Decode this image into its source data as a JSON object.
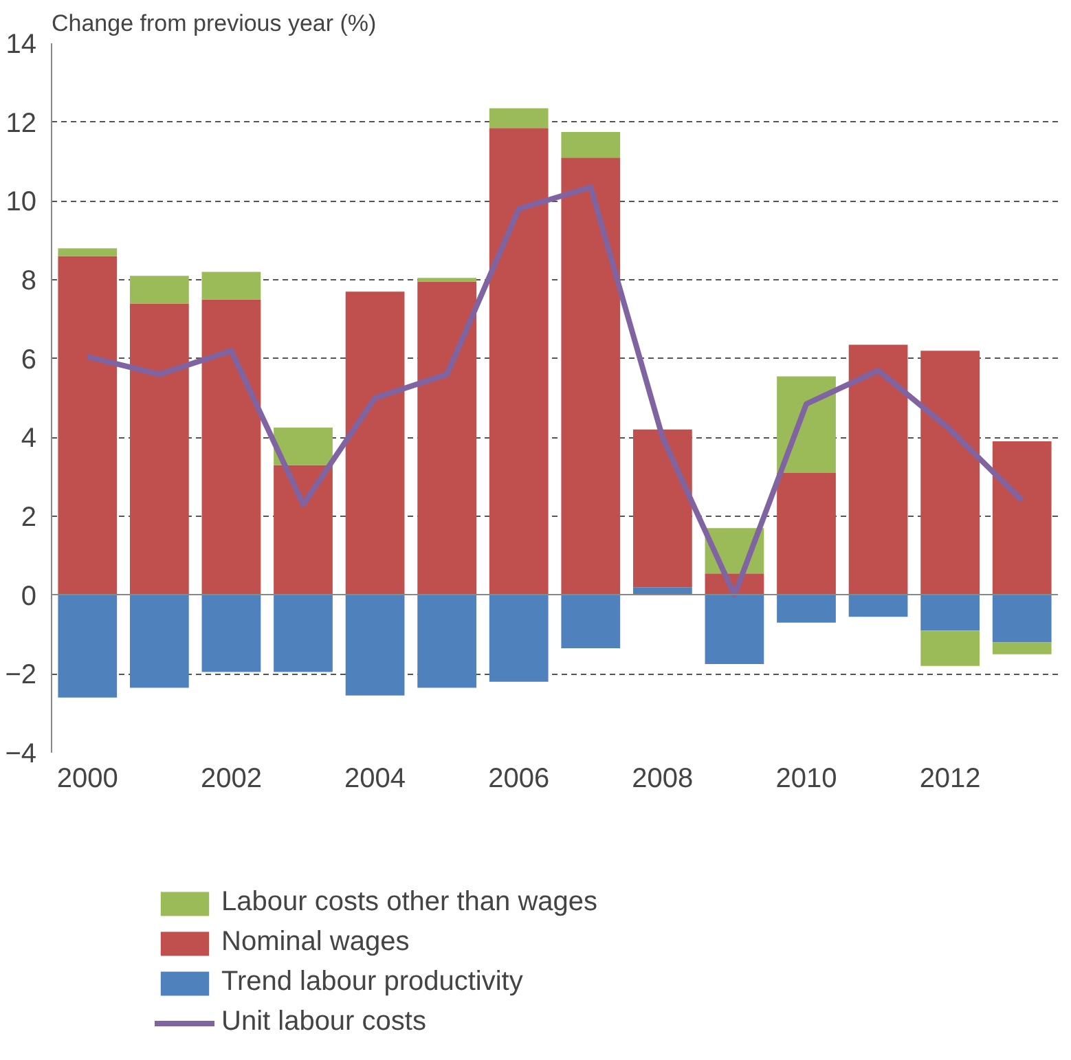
{
  "chart_data": {
    "type": "bar",
    "title": "Change from previous year (%)",
    "stacked": true,
    "x": [
      2000,
      2001,
      2002,
      2003,
      2004,
      2005,
      2006,
      2007,
      2008,
      2009,
      2010,
      2011,
      2012,
      2013
    ],
    "series": [
      {
        "name": "Trend labour productivity",
        "color": "#4f81bd",
        "values": [
          -2.6,
          -2.35,
          -1.95,
          -1.95,
          -2.55,
          -2.35,
          -2.2,
          -1.35,
          0.2,
          -1.75,
          -0.7,
          -0.55,
          -0.9,
          -1.2
        ]
      },
      {
        "name": "Nominal wages",
        "color": "#c0504d",
        "values": [
          8.6,
          7.4,
          7.5,
          3.3,
          7.7,
          7.95,
          11.85,
          11.1,
          4.0,
          0.55,
          3.1,
          6.35,
          6.2,
          3.9
        ]
      },
      {
        "name": "Labour costs other than wages",
        "color": "#9bbb59",
        "values": [
          0.2,
          0.7,
          0.7,
          0.95,
          0,
          0.1,
          0.5,
          0.65,
          0,
          1.15,
          2.45,
          0,
          -0.9,
          -0.3
        ]
      },
      {
        "name": "Unit labour costs",
        "color": "#8064a2",
        "type": "line",
        "values": [
          6.05,
          5.6,
          6.2,
          2.3,
          5.0,
          5.6,
          9.8,
          10.35,
          4.0,
          0.0,
          4.85,
          5.7,
          4.2,
          2.4
        ]
      }
    ],
    "xlim": [
      1999.5,
      2013.5
    ],
    "xticks": [
      2000,
      2002,
      2004,
      2006,
      2008,
      2010,
      2012
    ],
    "ylim": [
      -4,
      14
    ],
    "yticks": [
      -4,
      -2,
      0,
      2,
      4,
      6,
      8,
      10,
      12,
      14
    ],
    "grid": "y",
    "legend": "bottom",
    "marker": "none",
    "line_style": "solid"
  }
}
